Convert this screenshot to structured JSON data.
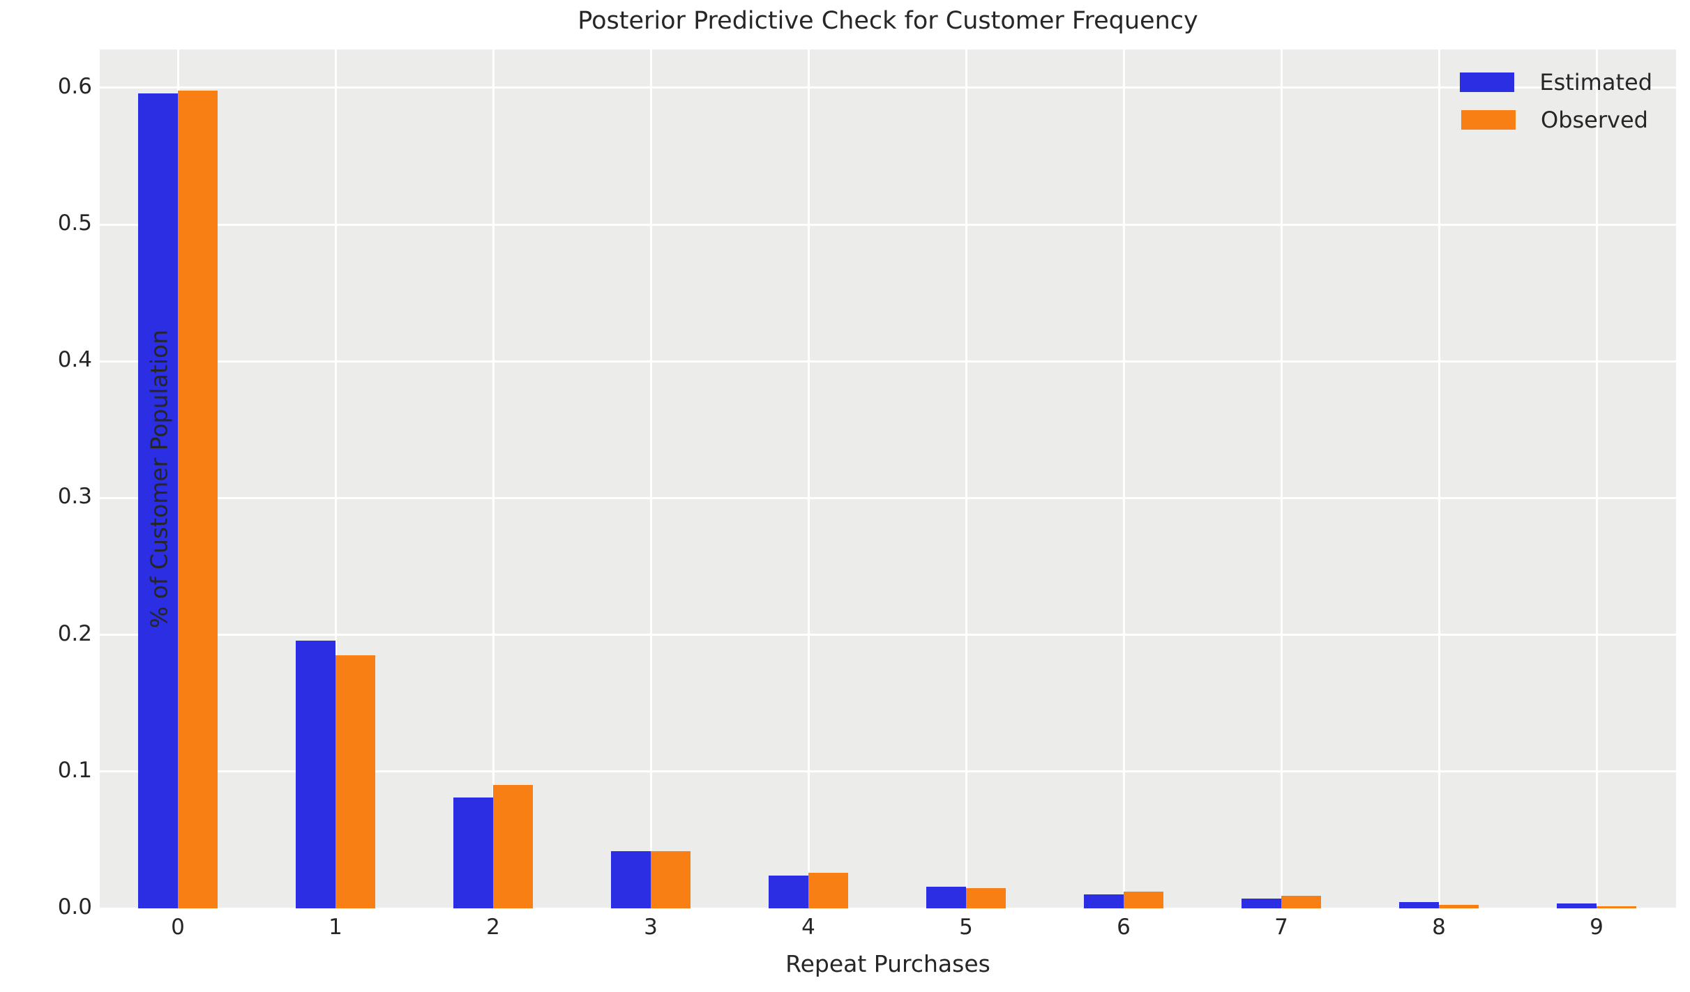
{
  "chart_data": {
    "type": "bar",
    "title": "Posterior Predictive Check for Customer Frequency",
    "xlabel": "Repeat Purchases",
    "ylabel": "% of Customer Population",
    "categories": [
      "0",
      "1",
      "2",
      "3",
      "4",
      "5",
      "6",
      "7",
      "8",
      "9"
    ],
    "series": [
      {
        "name": "Estimated",
        "color": "#2b2ee2",
        "values": [
          0.596,
          0.196,
          0.081,
          0.042,
          0.024,
          0.016,
          0.01,
          0.007,
          0.0045,
          0.0037
        ]
      },
      {
        "name": "Observed",
        "color": "#f87f14",
        "values": [
          0.598,
          0.185,
          0.09,
          0.042,
          0.026,
          0.015,
          0.012,
          0.009,
          0.0024,
          0.0015
        ]
      }
    ],
    "ylim": [
      0,
      0.628
    ],
    "yticks": [
      0.0,
      0.1,
      0.2,
      0.3,
      0.4,
      0.5,
      0.6
    ],
    "ytick_labels": [
      "0.0",
      "0.1",
      "0.2",
      "0.3",
      "0.4",
      "0.5",
      "0.6"
    ],
    "grid": true,
    "legend_position": "upper right",
    "plot_background_color": "#ECECEA",
    "grid_color": "#ffffff",
    "text_color": "#262626"
  }
}
